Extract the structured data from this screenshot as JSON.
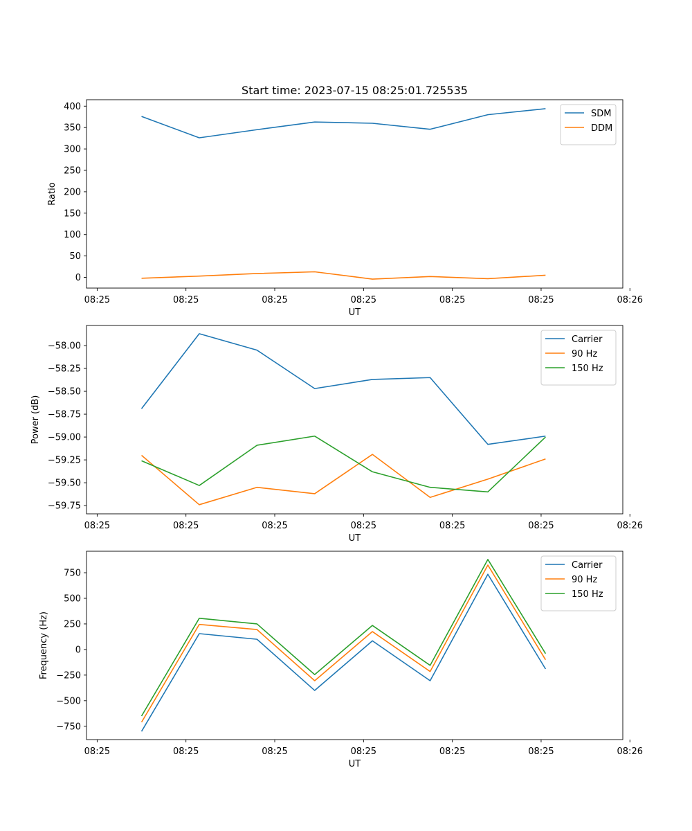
{
  "chart_data": [
    {
      "type": "line",
      "title": "Start time: 2023-07-15 08:25:01.725535",
      "xlabel": "UT",
      "ylabel": "Ratio",
      "legend": "top-right",
      "grid": false,
      "x_ticks": [
        0,
        1,
        2,
        3,
        4,
        5,
        6
      ],
      "x_tick_labels": [
        "08:25",
        "08:25",
        "08:25",
        "08:25",
        "08:25",
        "08:25",
        "08:26"
      ],
      "xlim": [
        -0.12,
        5.92
      ],
      "x": [
        0.5,
        1.15,
        1.8,
        2.45,
        3.1,
        3.75,
        4.4,
        5.05
      ],
      "ylim": [
        -25,
        415
      ],
      "y_ticks": [
        0,
        50,
        100,
        150,
        200,
        250,
        300,
        350,
        400
      ],
      "y_tick_labels": [
        "0",
        "50",
        "100",
        "150",
        "200",
        "250",
        "300",
        "350",
        "400"
      ],
      "series": [
        {
          "name": "SDM",
          "color": "#1f77b4",
          "values": [
            376,
            326,
            345,
            363,
            360,
            346,
            380,
            394
          ]
        },
        {
          "name": "DDM",
          "color": "#ff7f0e",
          "values": [
            -2,
            3,
            9,
            13,
            -4,
            2,
            -3,
            5
          ]
        }
      ]
    },
    {
      "type": "line",
      "title": "",
      "xlabel": "UT",
      "ylabel": "Power (dB)",
      "legend": "top-right",
      "grid": false,
      "x_ticks": [
        0,
        1,
        2,
        3,
        4,
        5,
        6
      ],
      "x_tick_labels": [
        "08:25",
        "08:25",
        "08:25",
        "08:25",
        "08:25",
        "08:25",
        "08:26"
      ],
      "xlim": [
        -0.12,
        5.92
      ],
      "x": [
        0.5,
        1.15,
        1.8,
        2.45,
        3.1,
        3.75,
        4.4,
        5.05
      ],
      "ylim": [
        -59.84,
        -57.78
      ],
      "y_ticks": [
        -59.75,
        -59.5,
        -59.25,
        -59.0,
        -58.75,
        -58.5,
        -58.25,
        -58.0
      ],
      "y_tick_labels": [
        "−59.75",
        "−59.50",
        "−59.25",
        "−59.00",
        "−58.75",
        "−58.50",
        "−58.25",
        "−58.00"
      ],
      "series": [
        {
          "name": "Carrier",
          "color": "#1f77b4",
          "values": [
            -58.69,
            -57.87,
            -58.05,
            -58.47,
            -58.37,
            -58.35,
            -59.08,
            -58.99
          ]
        },
        {
          "name": "90 Hz",
          "color": "#ff7f0e",
          "values": [
            -59.2,
            -59.74,
            -59.55,
            -59.62,
            -59.19,
            -59.66,
            -59.46,
            -59.24
          ]
        },
        {
          "name": "150 Hz",
          "color": "#2ca02c",
          "values": [
            -59.26,
            -59.53,
            -59.09,
            -58.99,
            -59.38,
            -59.55,
            -59.6,
            -59.0
          ]
        }
      ]
    },
    {
      "type": "line",
      "title": "",
      "xlabel": "UT",
      "ylabel": "Frequency (Hz)",
      "legend": "top-right",
      "grid": false,
      "x_ticks": [
        0,
        1,
        2,
        3,
        4,
        5,
        6
      ],
      "x_tick_labels": [
        "08:25",
        "08:25",
        "08:25",
        "08:25",
        "08:25",
        "08:25",
        "08:26"
      ],
      "xlim": [
        -0.12,
        5.92
      ],
      "x": [
        0.5,
        1.15,
        1.8,
        2.45,
        3.1,
        3.75,
        4.4,
        5.05
      ],
      "ylim": [
        -880,
        960
      ],
      "y_ticks": [
        -750,
        -500,
        -250,
        0,
        250,
        500,
        750
      ],
      "y_tick_labels": [
        "−750",
        "−500",
        "−250",
        "0",
        "250",
        "500",
        "750"
      ],
      "series": [
        {
          "name": "Carrier",
          "color": "#1f77b4",
          "values": [
            -800,
            155,
            100,
            -400,
            85,
            -305,
            735,
            -190
          ]
        },
        {
          "name": "90 Hz",
          "color": "#ff7f0e",
          "values": [
            -710,
            245,
            195,
            -305,
            175,
            -215,
            825,
            -100
          ]
        },
        {
          "name": "150 Hz",
          "color": "#2ca02c",
          "values": [
            -650,
            305,
            250,
            -245,
            235,
            -155,
            880,
            -40
          ]
        }
      ]
    }
  ]
}
